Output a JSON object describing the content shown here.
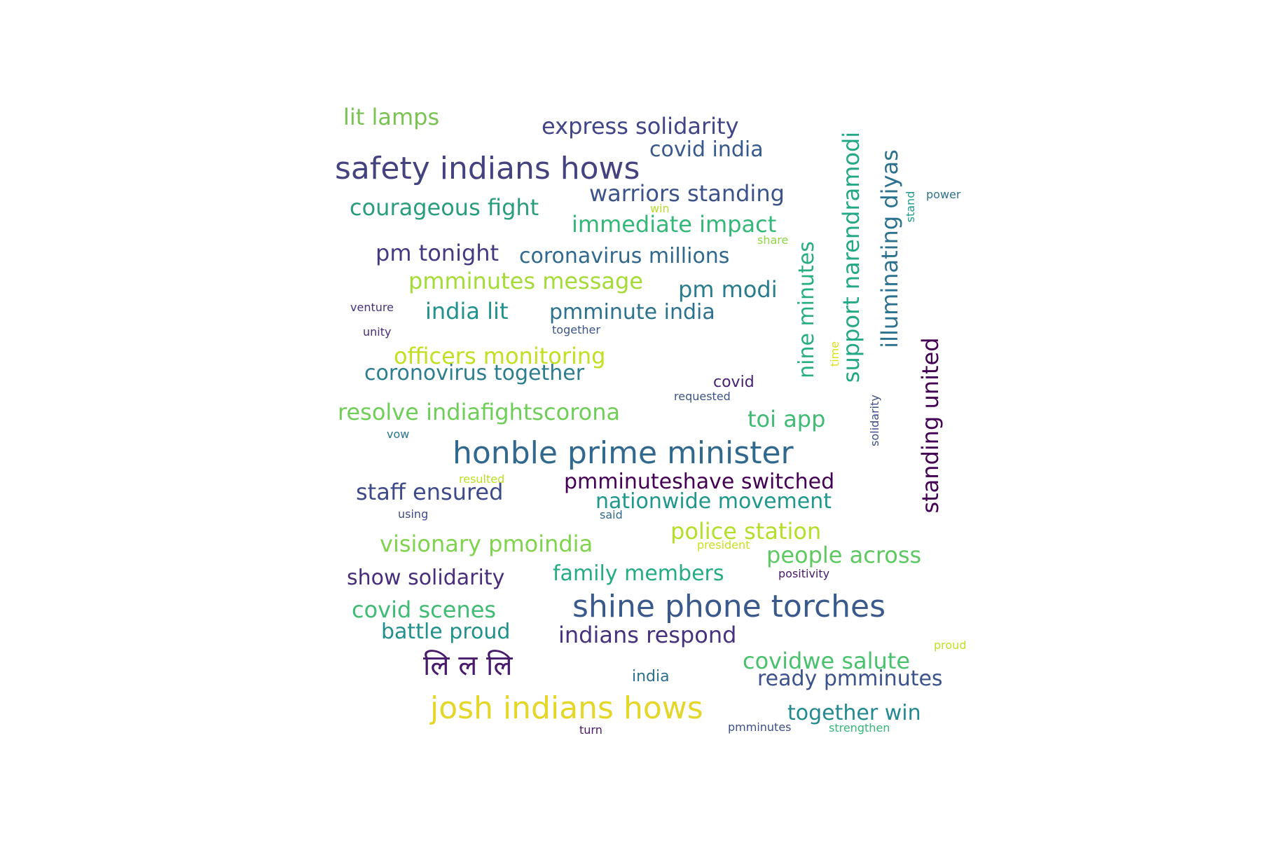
{
  "words": [
    {
      "text": "safety indians hows",
      "color": "#45437f"
    },
    {
      "text": "honble prime minister",
      "color": "#31688e"
    },
    {
      "text": "shine phone torches",
      "color": "#3b5a8c"
    },
    {
      "text": "josh indians hows",
      "color": "#e5d62a"
    },
    {
      "text": "लि ल लि",
      "color": "#481a6c"
    },
    {
      "text": "lit lamps",
      "color": "#7ac352"
    },
    {
      "text": "express solidarity",
      "color": "#414487"
    },
    {
      "text": "covid india",
      "color": "#38598c"
    },
    {
      "text": "warriors standing",
      "color": "#3b528b"
    },
    {
      "text": "courageous fight",
      "color": "#2a9d7c"
    },
    {
      "text": "immediate impact",
      "color": "#35b779"
    },
    {
      "text": "pm tonight",
      "color": "#443a83"
    },
    {
      "text": "coronavirus millions",
      "color": "#31688e"
    },
    {
      "text": "pmminutes message",
      "color": "#a5db36"
    },
    {
      "text": "pm modi",
      "color": "#287c8e"
    },
    {
      "text": "india lit",
      "color": "#21918c"
    },
    {
      "text": "pmminute india",
      "color": "#2c728e"
    },
    {
      "text": "officers monitoring",
      "color": "#c2df23"
    },
    {
      "text": "coronovirus together",
      "color": "#2c7e8e"
    },
    {
      "text": "resolve indiafightscorona",
      "color": "#6ece58"
    },
    {
      "text": "toi app",
      "color": "#3fbc73"
    },
    {
      "text": "staff ensured",
      "color": "#3e4a89"
    },
    {
      "text": "pmminuteshave switched",
      "color": "#440154"
    },
    {
      "text": "nationwide movement",
      "color": "#1f988b"
    },
    {
      "text": "police station",
      "color": "#b5de2b"
    },
    {
      "text": "visionary pmoindia",
      "color": "#7fd34e"
    },
    {
      "text": "people across",
      "color": "#5ec962"
    },
    {
      "text": "family members",
      "color": "#25ac82"
    },
    {
      "text": "show solidarity",
      "color": "#472d7b"
    },
    {
      "text": "covid scenes",
      "color": "#3fbc73"
    },
    {
      "text": "battle proud",
      "color": "#21918c"
    },
    {
      "text": "indians respond",
      "color": "#46327e"
    },
    {
      "text": "covidwe salute",
      "color": "#4ac16d"
    },
    {
      "text": "ready pmminutes",
      "color": "#3b528b"
    },
    {
      "text": "together win",
      "color": "#23898e"
    },
    {
      "text": "nine minutes",
      "color": "#26ad81"
    },
    {
      "text": "support narendramodi",
      "color": "#22a884"
    },
    {
      "text": "illuminating diyas",
      "color": "#2c728e"
    },
    {
      "text": "standing united",
      "color": "#440154"
    },
    {
      "text": "solidarity",
      "color": "#3e4c8a"
    },
    {
      "text": "stand",
      "color": "#1e9c89"
    },
    {
      "text": "time",
      "color": "#d8e219"
    },
    {
      "text": "power",
      "color": "#2c728e"
    },
    {
      "text": "win",
      "color": "#b5de2b"
    },
    {
      "text": "share",
      "color": "#8ed645"
    },
    {
      "text": "venture",
      "color": "#46337f"
    },
    {
      "text": "unity",
      "color": "#472c7a"
    },
    {
      "text": "together",
      "color": "#3a548c"
    },
    {
      "text": "covid",
      "color": "#482173"
    },
    {
      "text": "requested",
      "color": "#3a548c"
    },
    {
      "text": "vow",
      "color": "#2c728e"
    },
    {
      "text": "resulted",
      "color": "#bddf26"
    },
    {
      "text": "using",
      "color": "#3e4989"
    },
    {
      "text": "said",
      "color": "#2f6b8e"
    },
    {
      "text": "president",
      "color": "#c8e020"
    },
    {
      "text": "positivity",
      "color": "#481769"
    },
    {
      "text": "proud",
      "color": "#c0df25"
    },
    {
      "text": "india",
      "color": "#2e6f8e"
    },
    {
      "text": "turn",
      "color": "#48186a"
    },
    {
      "text": "pmminutes",
      "color": "#3d4e8a"
    },
    {
      "text": "strengthen",
      "color": "#35b779"
    }
  ]
}
